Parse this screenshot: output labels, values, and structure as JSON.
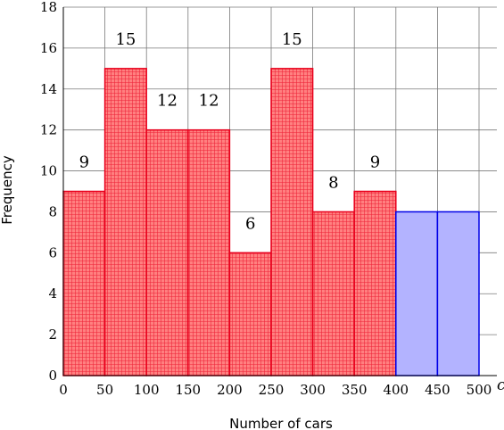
{
  "chart_data": {
    "type": "bar",
    "xlabel": "Number of cars",
    "ylabel": "Frequency",
    "x_variable": "c",
    "xlim": [
      0,
      500
    ],
    "ylim": [
      0,
      18
    ],
    "x_ticks": [
      0,
      50,
      100,
      150,
      200,
      250,
      300,
      350,
      400,
      450,
      500
    ],
    "y_ticks": [
      0,
      2,
      4,
      6,
      8,
      10,
      12,
      14,
      16,
      18
    ],
    "grid": true,
    "bars": [
      {
        "start": 0,
        "end": 50,
        "value": 9,
        "label": "9",
        "group": "red"
      },
      {
        "start": 50,
        "end": 100,
        "value": 15,
        "label": "15",
        "group": "red"
      },
      {
        "start": 100,
        "end": 150,
        "value": 12,
        "label": "12",
        "group": "red"
      },
      {
        "start": 150,
        "end": 200,
        "value": 12,
        "label": "12",
        "group": "red"
      },
      {
        "start": 200,
        "end": 250,
        "value": 6,
        "label": "6",
        "group": "red"
      },
      {
        "start": 250,
        "end": 300,
        "value": 15,
        "label": "15",
        "group": "red"
      },
      {
        "start": 300,
        "end": 350,
        "value": 8,
        "label": "8",
        "group": "red"
      },
      {
        "start": 350,
        "end": 400,
        "value": 9,
        "label": "9",
        "group": "red"
      },
      {
        "start": 400,
        "end": 450,
        "value": 8,
        "label": "",
        "group": "blue"
      },
      {
        "start": 450,
        "end": 500,
        "value": 8,
        "label": "",
        "group": "blue"
      }
    ],
    "colors": {
      "red_fill": "#ff8a8a",
      "red_stroke": "#e8001c",
      "blue_fill": "#b3b3ff",
      "blue_stroke": "#0000e6",
      "grid": "#7a7a7a"
    }
  }
}
